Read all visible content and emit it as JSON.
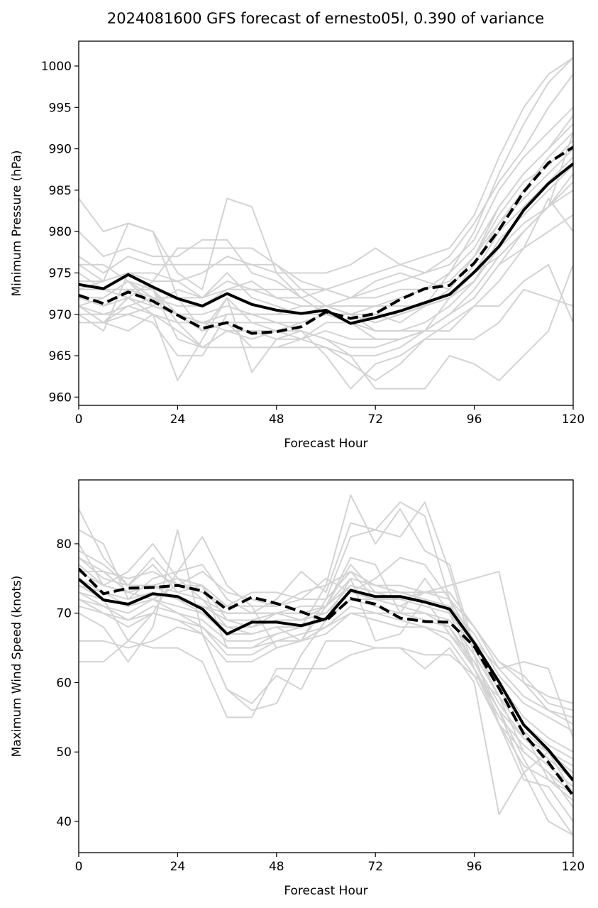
{
  "figure": {
    "title": "2024081600 GFS forecast of ernesto05l, 0.390 of variance",
    "colors": {
      "ensemble": "#d3d3d3",
      "mean": "#000000",
      "background": "#ffffff"
    }
  },
  "chart_data": [
    {
      "type": "line",
      "name": "pressure",
      "title": "2024081600 GFS forecast of ernesto05l, 0.390 of variance",
      "xlabel": "Forecast Hour",
      "ylabel": "Minimum Pressure (hPa)",
      "xlim": [
        0,
        120
      ],
      "ylim": [
        959,
        1003
      ],
      "xticks": [
        0,
        24,
        48,
        72,
        96,
        120
      ],
      "yticks": [
        960,
        965,
        970,
        975,
        980,
        985,
        990,
        995,
        1000
      ],
      "x": [
        0,
        6,
        12,
        18,
        24,
        30,
        36,
        42,
        48,
        54,
        60,
        66,
        72,
        78,
        84,
        90,
        96,
        102,
        108,
        114,
        120
      ],
      "ensemble": [
        [
          984,
          980,
          981,
          980,
          975,
          973,
          984,
          983,
          975,
          972,
          970,
          969,
          970,
          969,
          971,
          975,
          980,
          987,
          993,
          998,
          1001
        ],
        [
          980,
          977,
          978,
          977,
          977,
          979,
          979,
          975,
          974,
          972,
          973,
          974,
          975,
          976,
          977,
          978,
          982,
          989,
          995,
          999,
          1001
        ],
        [
          977,
          975,
          977,
          976,
          976,
          976,
          976,
          976,
          975,
          975,
          975,
          976,
          978,
          976,
          975,
          977,
          981,
          986,
          990,
          995,
          999
        ],
        [
          976,
          974,
          975,
          974,
          974,
          975,
          977,
          976,
          976,
          974,
          973,
          972,
          973,
          974,
          975,
          976,
          979,
          985,
          989,
          992,
          995
        ],
        [
          976,
          976,
          974,
          971,
          973,
          972,
          974,
          973,
          972,
          972,
          970,
          970,
          971,
          972,
          973,
          975,
          978,
          983,
          987,
          990,
          994
        ],
        [
          975,
          973,
          972,
          974,
          978,
          978,
          978,
          978,
          976,
          973,
          971,
          972,
          974,
          975,
          974,
          973,
          977,
          983,
          987,
          990,
          993
        ],
        [
          974,
          974,
          981,
          980,
          972,
          968,
          972,
          969,
          968,
          967,
          969,
          969,
          968,
          968,
          968,
          972,
          976,
          981,
          985,
          989,
          992
        ],
        [
          973,
          973,
          973,
          972,
          971,
          971,
          973,
          973,
          973,
          973,
          973,
          972,
          972,
          973,
          973,
          974,
          977,
          982,
          986,
          988,
          991
        ],
        [
          972,
          972,
          974,
          972,
          972,
          972,
          975,
          972,
          971,
          970,
          970,
          970,
          969,
          970,
          971,
          973,
          977,
          981,
          984,
          987,
          990
        ],
        [
          972,
          971,
          973,
          973,
          970,
          970,
          971,
          970,
          970,
          970,
          971,
          971,
          971,
          971,
          971,
          972,
          975,
          980,
          983,
          986,
          989
        ],
        [
          971,
          970,
          970,
          971,
          970,
          969,
          969,
          969,
          969,
          969,
          970,
          970,
          970,
          970,
          971,
          972,
          974,
          979,
          982,
          985,
          988
        ],
        [
          971,
          969,
          972,
          971,
          970,
          969,
          970,
          970,
          970,
          971,
          971,
          970,
          968,
          968,
          969,
          971,
          974,
          978,
          981,
          983,
          986
        ],
        [
          970,
          970,
          971,
          970,
          969,
          969,
          968,
          968,
          968,
          969,
          970,
          969,
          967,
          967,
          968,
          970,
          973,
          977,
          980,
          983,
          987
        ],
        [
          970,
          968,
          975,
          973,
          967,
          966,
          968,
          967,
          968,
          968,
          967,
          966,
          966,
          967,
          968,
          970,
          972,
          976,
          980,
          983,
          985
        ],
        [
          969,
          969,
          971,
          972,
          970,
          968,
          969,
          966,
          966,
          966,
          966,
          965,
          965,
          966,
          968,
          970,
          972,
          976,
          978,
          980,
          982
        ],
        [
          969,
          969,
          968,
          970,
          962,
          967,
          972,
          963,
          967,
          968,
          965,
          961,
          964,
          965,
          967,
          969,
          971,
          974,
          978,
          984,
          980
        ],
        [
          971,
          969,
          970,
          969,
          965,
          965,
          970,
          970,
          969,
          968,
          967,
          965,
          961,
          961,
          961,
          965,
          964,
          962,
          965,
          968,
          976
        ],
        [
          972,
          971,
          972,
          970,
          968,
          966,
          966,
          966,
          966,
          967,
          966,
          964,
          962,
          964,
          967,
          967,
          967,
          969,
          973,
          972,
          971
        ],
        [
          971,
          972,
          974,
          973,
          969,
          966,
          968,
          968,
          967,
          967,
          968,
          967,
          967,
          967,
          968,
          968,
          971,
          971,
          974,
          976,
          969
        ],
        [
          973,
          974,
          975,
          975,
          974,
          972,
          973,
          974,
          972,
          971,
          971,
          970,
          969,
          970,
          971,
          972,
          975,
          977,
          980,
          983,
          992
        ]
      ],
      "mean_solid": [
        973.6,
        973.1,
        974.8,
        973.3,
        971.9,
        971.0,
        972.5,
        971.2,
        970.5,
        970.1,
        970.5,
        968.9,
        969.6,
        970.4,
        971.4,
        972.4,
        975.1,
        978.2,
        982.6,
        985.8,
        988.2
      ],
      "mean_dashed": [
        972.3,
        971.3,
        972.7,
        971.6,
        969.9,
        968.3,
        969.0,
        967.7,
        967.9,
        968.5,
        970.3,
        969.5,
        970.1,
        971.8,
        973.1,
        973.5,
        976.2,
        980.2,
        984.8,
        988.3,
        990.2
      ]
    },
    {
      "type": "line",
      "name": "wind",
      "title": "",
      "xlabel": "Forecast Hour",
      "ylabel": "Maximum Wind Speed (knots)",
      "xlim": [
        0,
        120
      ],
      "ylim": [
        35.5,
        89.2
      ],
      "xticks": [
        0,
        24,
        48,
        72,
        96,
        120
      ],
      "yticks": [
        40,
        50,
        60,
        70,
        80
      ],
      "x": [
        0,
        6,
        12,
        18,
        24,
        30,
        36,
        42,
        48,
        54,
        60,
        66,
        72,
        78,
        84,
        90,
        96,
        102,
        108,
        114,
        120
      ],
      "ensemble": [
        [
          85,
          78,
          74,
          78,
          74,
          74,
          65,
          65,
          67,
          68,
          74,
          87,
          80,
          85,
          79,
          77,
          65,
          58,
          50,
          47,
          42
        ],
        [
          82,
          80,
          72,
          75,
          76,
          77,
          72,
          70,
          72,
          76,
          73,
          83,
          82,
          81,
          86,
          76,
          64,
          54,
          46,
          45,
          40
        ],
        [
          80,
          74,
          76,
          80,
          75,
          72,
          68,
          67,
          68,
          66,
          72,
          81,
          82,
          86,
          84,
          72,
          62,
          56,
          49,
          43,
          38
        ],
        [
          79,
          77,
          74,
          77,
          73,
          74,
          69,
          68,
          70,
          69,
          71,
          77,
          73,
          72,
          73,
          74,
          75,
          76,
          60,
          56,
          54
        ],
        [
          78,
          76,
          75,
          76,
          74,
          73,
          71,
          71,
          71,
          72,
          72,
          76,
          74,
          74,
          73,
          73,
          68,
          63,
          60,
          58,
          57
        ],
        [
          77,
          74,
          73,
          74,
          72,
          71,
          70,
          70,
          70,
          70,
          71,
          75,
          74,
          73,
          73,
          72,
          68,
          62,
          58,
          56,
          55
        ],
        [
          76,
          74,
          73,
          74,
          73,
          72,
          70,
          70,
          70,
          71,
          71,
          74,
          73,
          73,
          72,
          71,
          67,
          61,
          57,
          55,
          53
        ],
        [
          75,
          73,
          72,
          73,
          72,
          71,
          69,
          69,
          70,
          70,
          70,
          74,
          73,
          72,
          72,
          71,
          66,
          60,
          55,
          52,
          50
        ],
        [
          74,
          73,
          71,
          73,
          72,
          70,
          68,
          68,
          69,
          69,
          70,
          73,
          72,
          72,
          71,
          70,
          65,
          59,
          54,
          51,
          49
        ],
        [
          73,
          72,
          71,
          72,
          71,
          70,
          67,
          67,
          68,
          68,
          69,
          72,
          72,
          71,
          70,
          69,
          64,
          58,
          53,
          50,
          48
        ],
        [
          73,
          71,
          70,
          72,
          70,
          69,
          66,
          66,
          67,
          68,
          69,
          72,
          71,
          70,
          70,
          68,
          63,
          57,
          52,
          50,
          47
        ],
        [
          72,
          71,
          69,
          71,
          70,
          68,
          65,
          65,
          66,
          67,
          68,
          71,
          70,
          70,
          69,
          68,
          62,
          56,
          52,
          49,
          46
        ],
        [
          72,
          70,
          69,
          70,
          69,
          68,
          64,
          64,
          66,
          66,
          68,
          70,
          70,
          69,
          68,
          67,
          62,
          55,
          51,
          48,
          45
        ],
        [
          71,
          70,
          68,
          70,
          69,
          67,
          63,
          63,
          65,
          66,
          67,
          70,
          69,
          68,
          68,
          66,
          61,
          54,
          50,
          47,
          44
        ],
        [
          66,
          66,
          65,
          66,
          68,
          67,
          59,
          57,
          61,
          59,
          66,
          66,
          65,
          65,
          64,
          64,
          61,
          58,
          53,
          46,
          43
        ],
        [
          63,
          63,
          66,
          65,
          65,
          63,
          55,
          55,
          62,
          62,
          62,
          64,
          65,
          65,
          62,
          65,
          60,
          41,
          47,
          50,
          44
        ],
        [
          70,
          68,
          63,
          68,
          82,
          67,
          59,
          56,
          57,
          64,
          69,
          75,
          66,
          67,
          72,
          67,
          63,
          56,
          47,
          40,
          38
        ],
        [
          74,
          72,
          66,
          70,
          76,
          81,
          74,
          71,
          65,
          66,
          71,
          78,
          77,
          70,
          75,
          70,
          62,
          54,
          48,
          46,
          44
        ],
        [
          78,
          75,
          74,
          74,
          75,
          74,
          71,
          73,
          73,
          72,
          75,
          73,
          75,
          78,
          77,
          72,
          66,
          62,
          63,
          62,
          52
        ],
        [
          76,
          76,
          73,
          72,
          74,
          76,
          73,
          72,
          71,
          73,
          74,
          76,
          72,
          71,
          73,
          73,
          68,
          63,
          61,
          57,
          56
        ]
      ],
      "mean_solid": [
        74.9,
        71.9,
        71.3,
        72.8,
        72.4,
        70.6,
        67.0,
        68.7,
        68.7,
        68.2,
        69.2,
        73.3,
        72.4,
        72.4,
        71.6,
        70.6,
        65.7,
        60.1,
        53.9,
        50.3,
        45.9
      ],
      "mean_dashed": [
        76.4,
        72.8,
        73.6,
        73.7,
        74.0,
        73.2,
        70.5,
        72.3,
        71.4,
        70.2,
        68.9,
        72.1,
        71.3,
        69.3,
        68.8,
        68.7,
        65.2,
        59.2,
        52.6,
        48.5,
        43.7
      ]
    }
  ]
}
